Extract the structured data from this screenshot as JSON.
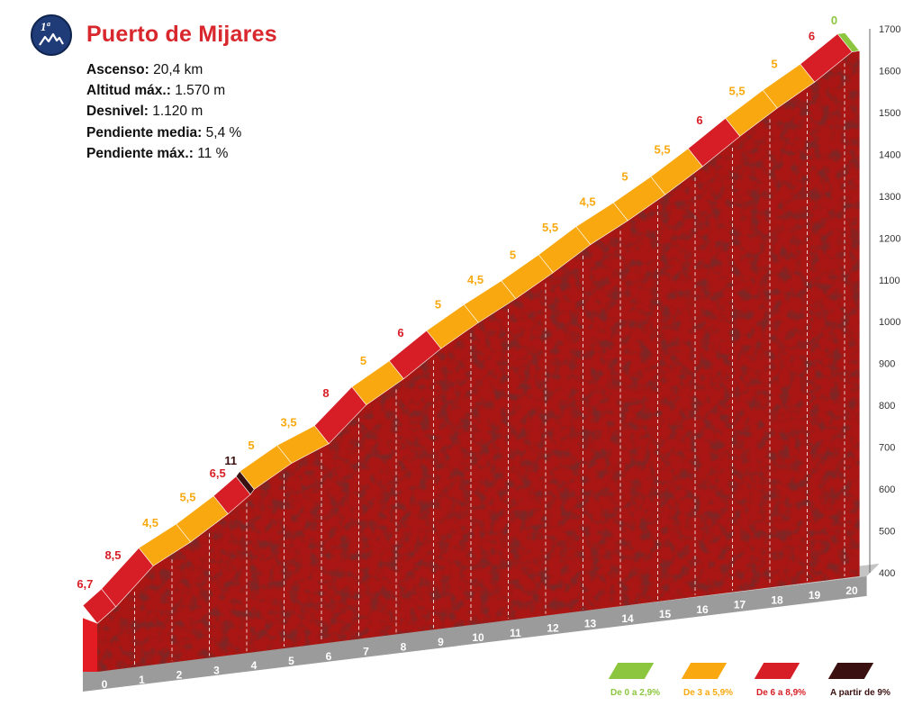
{
  "badge": {
    "category": "1ª",
    "icon": "mountain-icon"
  },
  "title": "Puerto de Mijares",
  "stats": [
    {
      "label": "Ascenso:",
      "value": "20,4 km"
    },
    {
      "label": "Altitud máx.:",
      "value": "1.570 m"
    },
    {
      "label": "Desnivel:",
      "value": "1.120 m"
    },
    {
      "label": "Pendiente media:",
      "value": "5,4 %"
    },
    {
      "label": "Pendiente máx.:",
      "value": "11 %"
    }
  ],
  "legend": [
    {
      "label": "De 0 a 2,9%",
      "color": "#8cc63f"
    },
    {
      "label": "De 3 a 5,9%",
      "color": "#f9a90f"
    },
    {
      "label": "De 6 a 8,9%",
      "color": "#d71e26"
    },
    {
      "label": "A partir de 9%",
      "color": "#3b1010"
    }
  ],
  "chart_data": {
    "type": "area",
    "xlabel": "",
    "ylabel": "",
    "x_ticks": [
      0,
      1,
      2,
      3,
      4,
      5,
      6,
      7,
      8,
      9,
      10,
      11,
      12,
      13,
      14,
      15,
      16,
      17,
      18,
      19,
      20
    ],
    "y_ticks": [
      400,
      500,
      600,
      700,
      800,
      900,
      1000,
      1100,
      1200,
      1300,
      1400,
      1500,
      1600,
      1700
    ],
    "ylim": [
      400,
      1700
    ],
    "xlim": [
      0,
      20.4
    ],
    "segments": [
      {
        "from": 0.0,
        "to": 0.5,
        "gradient": 6.7,
        "label": "6,7",
        "category": "red"
      },
      {
        "from": 0.5,
        "to": 1.5,
        "gradient": 8.5,
        "label": "8,5",
        "category": "red"
      },
      {
        "from": 1.5,
        "to": 2.5,
        "gradient": 4.5,
        "label": "4,5",
        "category": "orange"
      },
      {
        "from": 2.5,
        "to": 3.5,
        "gradient": 5.5,
        "label": "5,5",
        "category": "orange"
      },
      {
        "from": 3.5,
        "to": 4.1,
        "gradient": 6.5,
        "label": "6,5",
        "category": "red"
      },
      {
        "from": 4.1,
        "to": 4.2,
        "gradient": 11,
        "label": "11",
        "category": "darkred"
      },
      {
        "from": 4.2,
        "to": 5.2,
        "gradient": 5,
        "label": "5",
        "category": "orange"
      },
      {
        "from": 5.2,
        "to": 6.2,
        "gradient": 3.5,
        "label": "3,5",
        "category": "orange"
      },
      {
        "from": 6.2,
        "to": 7.2,
        "gradient": 8,
        "label": "8",
        "category": "red"
      },
      {
        "from": 7.2,
        "to": 8.2,
        "gradient": 5,
        "label": "5",
        "category": "orange"
      },
      {
        "from": 8.2,
        "to": 9.2,
        "gradient": 6,
        "label": "6",
        "category": "red"
      },
      {
        "from": 9.2,
        "to": 10.2,
        "gradient": 5,
        "label": "5",
        "category": "orange"
      },
      {
        "from": 10.2,
        "to": 11.2,
        "gradient": 4.5,
        "label": "4,5",
        "category": "orange"
      },
      {
        "from": 11.2,
        "to": 12.2,
        "gradient": 5,
        "label": "5",
        "category": "orange"
      },
      {
        "from": 12.2,
        "to": 13.2,
        "gradient": 5.5,
        "label": "5,5",
        "category": "orange"
      },
      {
        "from": 13.2,
        "to": 14.2,
        "gradient": 4.5,
        "label": "4,5",
        "category": "orange"
      },
      {
        "from": 14.2,
        "to": 15.2,
        "gradient": 5,
        "label": "5",
        "category": "orange"
      },
      {
        "from": 15.2,
        "to": 16.2,
        "gradient": 5.5,
        "label": "5,5",
        "category": "orange"
      },
      {
        "from": 16.2,
        "to": 17.2,
        "gradient": 6,
        "label": "6",
        "category": "red"
      },
      {
        "from": 17.2,
        "to": 18.2,
        "gradient": 5.5,
        "label": "5,5",
        "category": "orange"
      },
      {
        "from": 18.2,
        "to": 19.2,
        "gradient": 5,
        "label": "5",
        "category": "orange"
      },
      {
        "from": 19.2,
        "to": 20.2,
        "gradient": 6,
        "label": "6",
        "category": "red"
      },
      {
        "from": 20.2,
        "to": 20.4,
        "gradient": 0,
        "label": "0",
        "category": "green"
      }
    ]
  }
}
